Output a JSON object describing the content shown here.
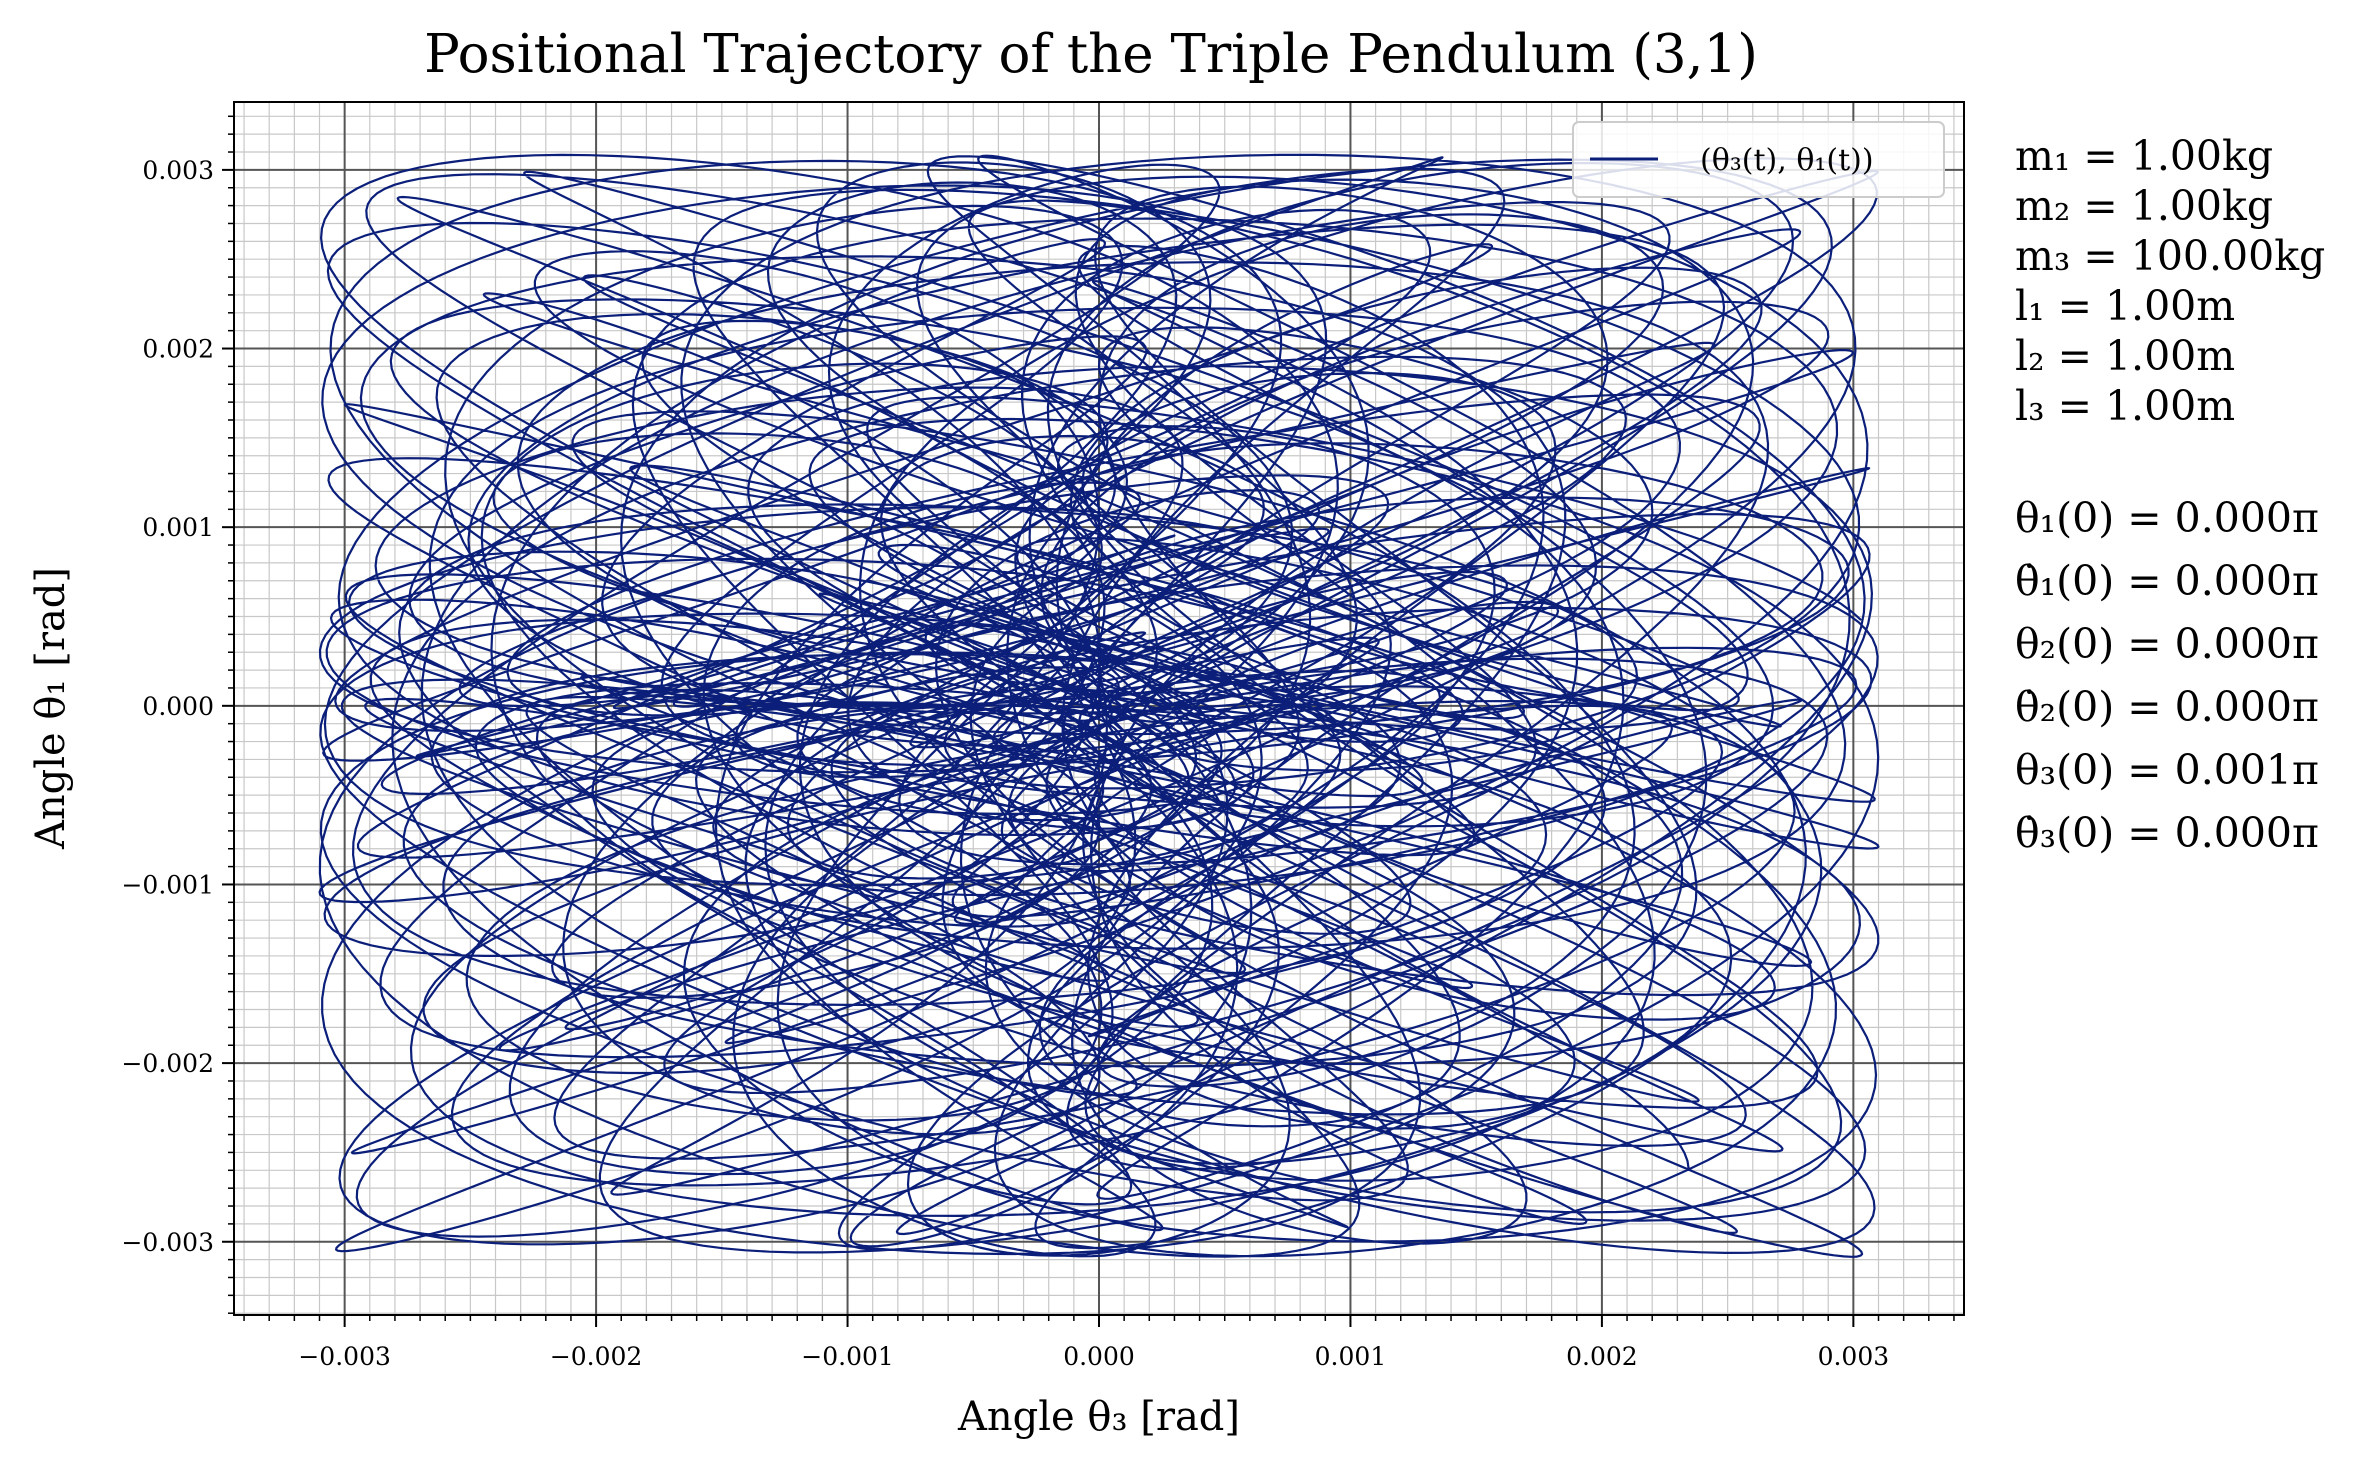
{
  "chart_data": {
    "type": "line",
    "title": "Positional Trajectory of the Triple Pendulum (3,1)",
    "xlabel": "Angle θ₃ [rad]",
    "ylabel": "Angle θ₁ [rad]",
    "xlim": [
      -0.00344,
      0.00344
    ],
    "ylim": [
      -0.00341,
      0.00338
    ],
    "x_ticks": [
      "−0.003",
      "−0.002",
      "−0.001",
      "0.000",
      "0.001",
      "0.002",
      "0.003"
    ],
    "y_ticks": [
      "0.003",
      "0.002",
      "0.001",
      "0.000",
      "−0.001",
      "−0.002",
      "−0.003"
    ],
    "grid": true,
    "minor_grid": true,
    "legend_position": "top-right",
    "series": [
      {
        "name": "(θ₃(t), θ₁(t))",
        "color": "#0b1f7a",
        "description_of_envelope": {
          "x_extent": [
            -0.00312,
            0.00315
          ],
          "y_extent": [
            -0.00309,
            0.00307
          ]
        }
      }
    ]
  },
  "params": {
    "lines": [
      "m₁ = 1.00kg",
      "m₂ = 1.00kg",
      "m₃ = 100.00kg",
      "l₁ = 1.00m",
      "l₂ = 1.00m",
      "l₃ = 1.00m",
      "θ₁(0) = 0.000π",
      "θ̇₁(0) = 0.000π",
      "θ₂(0) = 0.000π",
      "θ̇₂(0) = 0.000π",
      "θ₃(0) = 0.001π",
      "θ̇₃(0) = 0.000π"
    ]
  }
}
